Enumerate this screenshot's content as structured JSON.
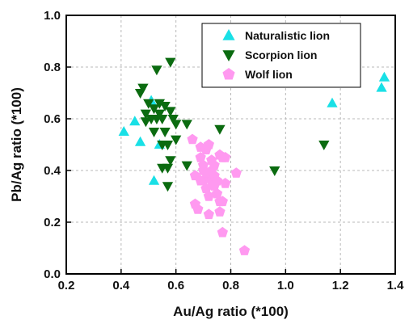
{
  "chart_data": {
    "type": "scatter",
    "title": "",
    "xlabel": "Au/Ag ratio (*100)",
    "ylabel": "Pb/Ag ratio (*100)",
    "xlim": [
      0.2,
      1.4
    ],
    "ylim": [
      0.0,
      1.0
    ],
    "xticks": [
      "0.2",
      "0.4",
      "0.6",
      "0.8",
      "1.0",
      "1.2",
      "1.4"
    ],
    "yticks": [
      "0.0",
      "0.2",
      "0.4",
      "0.6",
      "0.8",
      "1.0"
    ],
    "grid": true,
    "legend_position": "top-right",
    "series": [
      {
        "name": "Naturalistic lion",
        "marker": "triangle-up",
        "color": "#19e0e6",
        "points": [
          [
            0.41,
            0.55
          ],
          [
            0.45,
            0.59
          ],
          [
            0.47,
            0.51
          ],
          [
            0.51,
            0.67
          ],
          [
            0.52,
            0.36
          ],
          [
            0.54,
            0.5
          ],
          [
            1.17,
            0.66
          ],
          [
            1.35,
            0.72
          ],
          [
            1.36,
            0.76
          ]
        ]
      },
      {
        "name": "Scorpion lion",
        "marker": "triangle-down",
        "color": "#0b6b10",
        "points": [
          [
            0.47,
            0.7
          ],
          [
            0.48,
            0.72
          ],
          [
            0.49,
            0.62
          ],
          [
            0.49,
            0.59
          ],
          [
            0.5,
            0.66
          ],
          [
            0.51,
            0.6
          ],
          [
            0.52,
            0.64
          ],
          [
            0.52,
            0.55
          ],
          [
            0.53,
            0.79
          ],
          [
            0.53,
            0.6
          ],
          [
            0.54,
            0.66
          ],
          [
            0.54,
            0.62
          ],
          [
            0.55,
            0.6
          ],
          [
            0.55,
            0.41
          ],
          [
            0.56,
            0.65
          ],
          [
            0.56,
            0.55
          ],
          [
            0.57,
            0.5
          ],
          [
            0.57,
            0.41
          ],
          [
            0.57,
            0.34
          ],
          [
            0.58,
            0.82
          ],
          [
            0.58,
            0.63
          ],
          [
            0.58,
            0.44
          ],
          [
            0.59,
            0.6
          ],
          [
            0.6,
            0.52
          ],
          [
            0.6,
            0.58
          ],
          [
            0.64,
            0.58
          ],
          [
            0.64,
            0.42
          ],
          [
            0.76,
            0.56
          ],
          [
            0.96,
            0.4
          ],
          [
            1.14,
            0.5
          ],
          [
            0.55,
            0.5
          ]
        ]
      },
      {
        "name": "Wolf lion",
        "marker": "pentagon",
        "color": "#ff99f0",
        "points": [
          [
            0.66,
            0.52
          ],
          [
            0.67,
            0.38
          ],
          [
            0.67,
            0.27
          ],
          [
            0.68,
            0.25
          ],
          [
            0.69,
            0.49
          ],
          [
            0.69,
            0.45
          ],
          [
            0.7,
            0.42
          ],
          [
            0.7,
            0.4
          ],
          [
            0.7,
            0.36
          ],
          [
            0.71,
            0.48
          ],
          [
            0.71,
            0.33
          ],
          [
            0.72,
            0.5
          ],
          [
            0.72,
            0.38
          ],
          [
            0.72,
            0.3
          ],
          [
            0.72,
            0.23
          ],
          [
            0.73,
            0.44
          ],
          [
            0.73,
            0.4
          ],
          [
            0.73,
            0.36
          ],
          [
            0.74,
            0.42
          ],
          [
            0.74,
            0.38
          ],
          [
            0.74,
            0.34
          ],
          [
            0.75,
            0.36
          ],
          [
            0.75,
            0.31
          ],
          [
            0.76,
            0.46
          ],
          [
            0.76,
            0.28
          ],
          [
            0.76,
            0.24
          ],
          [
            0.77,
            0.45
          ],
          [
            0.77,
            0.28
          ],
          [
            0.77,
            0.16
          ],
          [
            0.78,
            0.45
          ],
          [
            0.78,
            0.35
          ],
          [
            0.82,
            0.39
          ],
          [
            0.85,
            0.09
          ],
          [
            0.69,
            0.36
          ],
          [
            0.71,
            0.39
          ]
        ]
      }
    ]
  }
}
